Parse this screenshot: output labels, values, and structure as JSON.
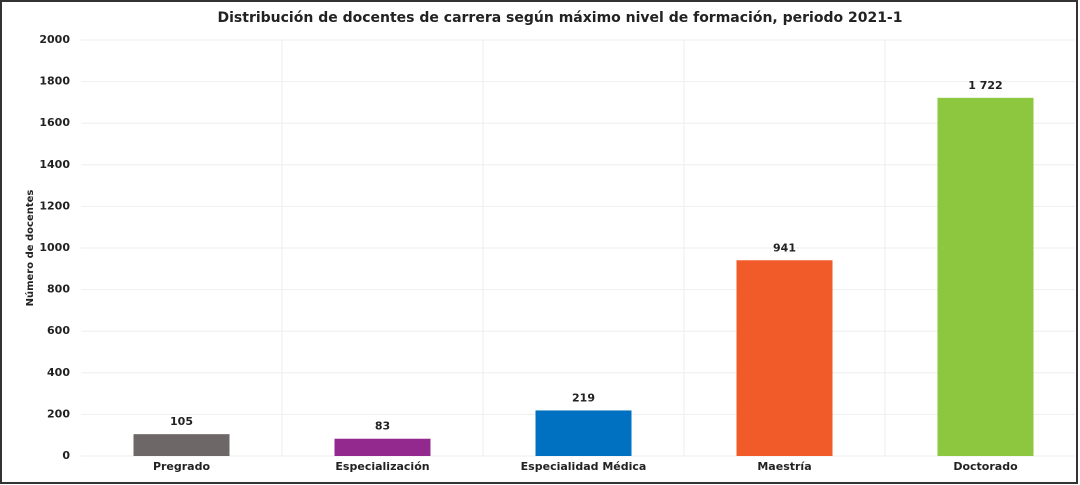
{
  "chart_data": {
    "type": "bar",
    "title": "Distribución de docentes de carrera según máximo nivel de formación, periodo 2021-1",
    "ylabel": "Número de docentes",
    "categories": [
      "Pregrado",
      "Especialización",
      "Especialidad Médica",
      "Maestría",
      "Doctorado"
    ],
    "values": [
      105,
      83,
      219,
      941,
      1722
    ],
    "value_labels": [
      "105",
      "83",
      "219",
      "941",
      "1 722"
    ],
    "colors": [
      "#6d6768",
      "#93298f",
      "#0070c0",
      "#f15a29",
      "#8dc63f"
    ],
    "ylim": [
      0,
      2000
    ],
    "yticks": [
      0,
      200,
      400,
      600,
      800,
      1000,
      1200,
      1400,
      1600,
      1800,
      2000
    ],
    "grid": true
  }
}
